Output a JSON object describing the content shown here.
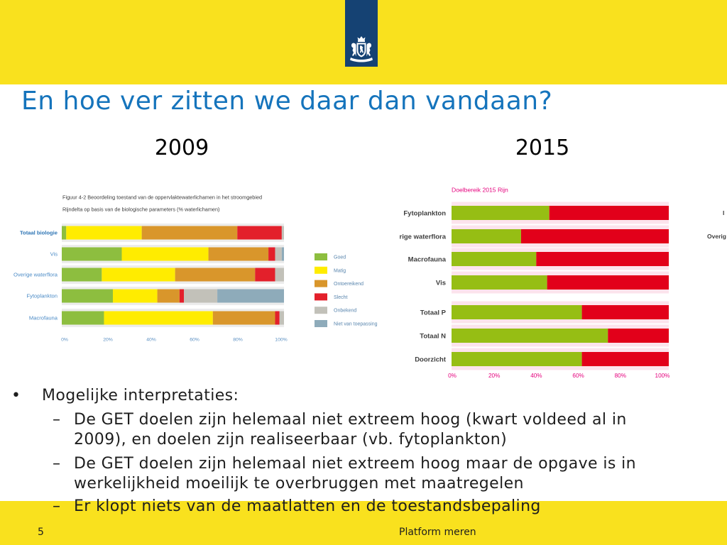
{
  "slide": {
    "title": "En hoe ver zitten we daar dan vandaan?",
    "year_left": "2009",
    "year_right": "2015",
    "cropped_chart_labels": [
      "I",
      "Overig"
    ],
    "bullets": [
      {
        "marker": "•",
        "lines": [
          "Mogelijke interpretaties:"
        ],
        "sub": [
          {
            "marker": "–",
            "lines": [
              "De GET doelen zijn helemaal niet extreem hoog (kwart voldeed al in",
              "2009), en doelen zijn realiseerbaar (vb. fytoplankton)"
            ]
          },
          {
            "marker": "–",
            "lines": [
              "De GET doelen zijn helemaal niet extreem hoog maar de opgave is in",
              "werkelijkheid moeilijk te overbruggen met maatregelen"
            ]
          },
          {
            "marker": "–",
            "lines": [
              "Er klopt niets van de maatlatten en de toestandsbepaling"
            ]
          }
        ]
      }
    ],
    "footer": {
      "page_number": "5",
      "text": "Platform meren"
    }
  },
  "colors": {
    "header_yellow": "#F9E11E",
    "logo_blue": "#154273",
    "title_blue": "#1574BC",
    "body_text": "#1E1E1E"
  },
  "icons": {
    "logo": "coat-of-arms-icon"
  },
  "chart_data": [
    {
      "type": "bar",
      "orientation": "horizontal",
      "stacked": true,
      "title": "Figuur 4-2 Beoordeling toestand van de oppervlaktewaterlichamen in het stroomgebied",
      "subtitle": "Rijndelta op basis van de biologische parameters (% waterlichamen)",
      "categories": [
        "Totaal biologie",
        "Vis",
        "Overige waterflora",
        "Fytoplankton",
        "Macrofauna"
      ],
      "series": [
        {
          "name": "Goed",
          "color": "#8DBE3F",
          "values": [
            2,
            27,
            18,
            23,
            19
          ]
        },
        {
          "name": "Matig",
          "color": "#FFEC00",
          "values": [
            34,
            39,
            33,
            20,
            49
          ]
        },
        {
          "name": "Ontoereikend",
          "color": "#D9962B",
          "values": [
            43,
            27,
            36,
            10,
            28
          ]
        },
        {
          "name": "Slecht",
          "color": "#E3202B",
          "values": [
            20,
            3,
            9,
            2,
            2
          ]
        },
        {
          "name": "Onbekend",
          "color": "#C2C1B9",
          "values": [
            1,
            3,
            4,
            15,
            2
          ]
        },
        {
          "name": "Niet van toepassing",
          "color": "#8EABBA",
          "values": [
            0,
            1,
            0,
            30,
            0
          ]
        }
      ],
      "xlim": [
        0,
        100
      ],
      "xticks": [
        "0%",
        "20%",
        "40%",
        "60%",
        "80%",
        "100%"
      ],
      "legend": "right"
    },
    {
      "type": "bar",
      "orientation": "horizontal",
      "stacked": true,
      "title": "Doelbereik 2015 Rijn",
      "categories": [
        "Fytoplankton",
        "rige waterflora",
        "Macrofauna",
        "Vis",
        "Totaal P",
        "Totaal N",
        "Doorzicht"
      ],
      "series": [
        {
          "color": "#96BE14",
          "values": [
            45,
            32,
            39,
            44,
            60,
            72,
            60
          ]
        },
        {
          "color": "#E2001A",
          "values": [
            55,
            68,
            61,
            56,
            40,
            28,
            40
          ]
        }
      ],
      "xlim": [
        0,
        100
      ],
      "xticks": [
        "0%",
        "20%",
        "40%",
        "60%",
        "80%",
        "100%"
      ]
    }
  ]
}
